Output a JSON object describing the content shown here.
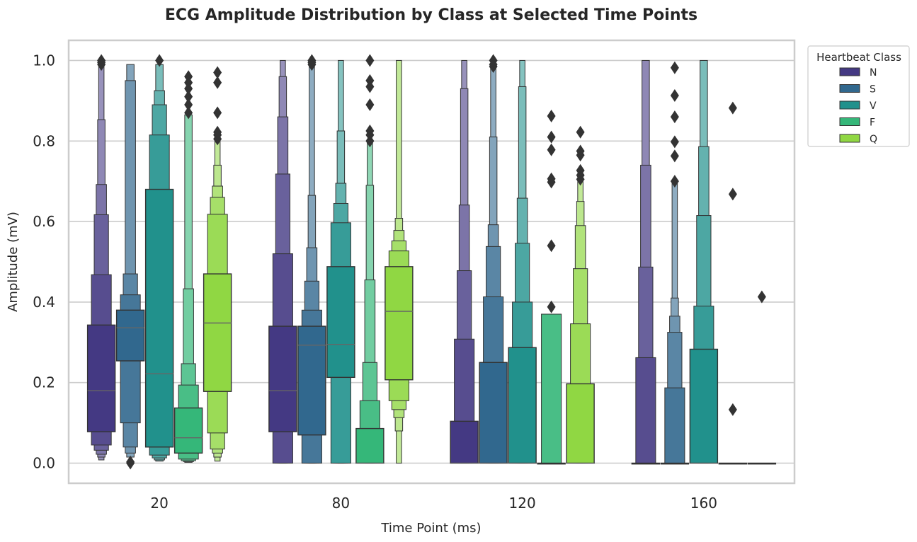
{
  "chart_data": {
    "type": "boxen",
    "title": "ECG Amplitude Distribution by Class at Selected Time Points",
    "xlabel": "Time Point (ms)",
    "ylabel": "Amplitude (mV)",
    "categories": [
      "20",
      "80",
      "120",
      "160"
    ],
    "ylim": [
      -0.05,
      1.05
    ],
    "yticks": [
      0.0,
      0.2,
      0.4,
      0.6,
      0.8,
      1.0
    ],
    "ytick_labels": [
      "0.0",
      "0.2",
      "0.4",
      "0.6",
      "0.8",
      "1.0"
    ],
    "grid": "horizontal",
    "legend": {
      "title": "Heartbeat Class",
      "position": "top-right, outside",
      "entries": [
        "N",
        "S",
        "V",
        "F",
        "Q"
      ]
    },
    "colors": {
      "N": "#443983",
      "S": "#31688e",
      "V": "#21918c",
      "F": "#35b779",
      "Q": "#90d743"
    },
    "series": [
      {
        "name": "N",
        "groups": [
          {
            "x": "20",
            "median": 0.18,
            "boxes": [
              [
                0.078,
                0.343
              ],
              [
                0.045,
                0.468
              ],
              [
                0.032,
                0.617
              ],
              [
                0.022,
                0.692
              ],
              [
                0.015,
                0.853
              ],
              [
                0.008,
                0.99
              ]
            ],
            "outliers": [
              0.99,
              0.995,
              1.0
            ]
          },
          {
            "x": "80",
            "median": 0.18,
            "boxes": [
              [
                0.078,
                0.34
              ],
              [
                0.0,
                0.52
              ],
              [
                0.0,
                0.718
              ],
              [
                0.0,
                0.86
              ],
              [
                0.0,
                0.96
              ],
              [
                0.0,
                1.0
              ]
            ],
            "outliers": []
          },
          {
            "x": "120",
            "median": 0.0,
            "boxes": [
              [
                0.0,
                0.104
              ],
              [
                0.0,
                0.308
              ],
              [
                0.0,
                0.478
              ],
              [
                0.0,
                0.641
              ],
              [
                0.0,
                0.93
              ],
              [
                0.0,
                1.0
              ]
            ],
            "outliers": []
          },
          {
            "x": "160",
            "median": 0.0,
            "boxes": [
              [
                0.0,
                0.0
              ],
              [
                0.0,
                0.262
              ],
              [
                0.0,
                0.487
              ],
              [
                0.0,
                0.74
              ],
              [
                0.0,
                1.0
              ]
            ],
            "outliers": []
          }
        ]
      },
      {
        "name": "S",
        "groups": [
          {
            "x": "20",
            "median": 0.336,
            "boxes": [
              [
                0.254,
                0.38
              ],
              [
                0.1,
                0.418
              ],
              [
                0.04,
                0.47
              ],
              [
                0.025,
                0.95
              ],
              [
                0.015,
                0.99
              ]
            ],
            "outliers": [
              0.0,
              0.003
            ]
          },
          {
            "x": "80",
            "median": 0.293,
            "boxes": [
              [
                0.07,
                0.34
              ],
              [
                0.0,
                0.38
              ],
              [
                0.0,
                0.452
              ],
              [
                0.0,
                0.535
              ],
              [
                0.0,
                0.665
              ],
              [
                0.0,
                1.0
              ]
            ],
            "outliers": [
              0.99,
              0.995,
              1.0
            ]
          },
          {
            "x": "120",
            "median": 0.0,
            "boxes": [
              [
                0.0,
                0.25
              ],
              [
                0.0,
                0.413
              ],
              [
                0.0,
                0.538
              ],
              [
                0.0,
                0.592
              ],
              [
                0.0,
                0.81
              ],
              [
                0.0,
                0.98
              ]
            ],
            "outliers": [
              0.985,
              0.99,
              1.0
            ]
          },
          {
            "x": "160",
            "median": 0.0,
            "boxes": [
              [
                0.0,
                0.0
              ],
              [
                0.0,
                0.187
              ],
              [
                0.0,
                0.325
              ],
              [
                0.0,
                0.365
              ],
              [
                0.0,
                0.41
              ],
              [
                0.0,
                0.7
              ]
            ],
            "outliers": [
              0.7,
              0.763,
              0.798,
              0.86,
              0.913,
              0.982
            ]
          }
        ]
      },
      {
        "name": "V",
        "groups": [
          {
            "x": "20",
            "median": 0.222,
            "boxes": [
              [
                0.04,
                0.68
              ],
              [
                0.02,
                0.815
              ],
              [
                0.013,
                0.89
              ],
              [
                0.008,
                0.925
              ],
              [
                0.005,
                0.99
              ]
            ],
            "outliers": [
              1.0
            ]
          },
          {
            "x": "80",
            "median": 0.295,
            "boxes": [
              [
                0.213,
                0.488
              ],
              [
                0.0,
                0.597
              ],
              [
                0.0,
                0.645
              ],
              [
                0.0,
                0.695
              ],
              [
                0.0,
                0.825
              ],
              [
                0.0,
                1.0
              ]
            ],
            "outliers": []
          },
          {
            "x": "120",
            "median": 0.0,
            "boxes": [
              [
                0.0,
                0.287
              ],
              [
                0.0,
                0.4
              ],
              [
                0.0,
                0.546
              ],
              [
                0.0,
                0.658
              ],
              [
                0.0,
                0.935
              ],
              [
                0.0,
                1.0
              ]
            ],
            "outliers": []
          },
          {
            "x": "160",
            "median": 0.0,
            "boxes": [
              [
                0.0,
                0.283
              ],
              [
                0.0,
                0.39
              ],
              [
                0.0,
                0.615
              ],
              [
                0.0,
                0.786
              ],
              [
                0.0,
                1.0
              ]
            ],
            "outliers": []
          }
        ]
      },
      {
        "name": "F",
        "groups": [
          {
            "x": "20",
            "median": 0.063,
            "boxes": [
              [
                0.025,
                0.137
              ],
              [
                0.01,
                0.194
              ],
              [
                0.006,
                0.247
              ],
              [
                0.004,
                0.433
              ],
              [
                0.002,
                0.865
              ]
            ],
            "outliers": [
              0.87,
              0.89,
              0.91,
              0.93,
              0.945,
              0.96
            ]
          },
          {
            "x": "80",
            "median": 0.0,
            "boxes": [
              [
                0.0,
                0.086
              ],
              [
                0.0,
                0.155
              ],
              [
                0.0,
                0.25
              ],
              [
                0.0,
                0.455
              ],
              [
                0.0,
                0.69
              ],
              [
                0.0,
                0.8
              ]
            ],
            "outliers": [
              0.8,
              0.815,
              0.825,
              0.89,
              0.935,
              0.95,
              1.0
            ]
          },
          {
            "x": "120",
            "median": 0.0,
            "boxes": [
              [
                0.0,
                0.0
              ],
              [
                0.0,
                0.37
              ]
            ],
            "outliers": [
              0.388,
              0.54,
              0.698,
              0.706,
              0.778,
              0.81,
              0.862
            ]
          },
          {
            "x": "160",
            "median": 0.0,
            "boxes": [
              [
                0.0,
                0.0
              ]
            ],
            "outliers": [
              0.133,
              0.668,
              0.882
            ]
          }
        ]
      },
      {
        "name": "Q",
        "groups": [
          {
            "x": "20",
            "median": 0.348,
            "boxes": [
              [
                0.178,
                0.47
              ],
              [
                0.075,
                0.618
              ],
              [
                0.035,
                0.66
              ],
              [
                0.025,
                0.688
              ],
              [
                0.015,
                0.74
              ],
              [
                0.005,
                0.8
              ]
            ],
            "outliers": [
              0.805,
              0.815,
              0.822,
              0.87,
              0.945,
              0.97
            ]
          },
          {
            "x": "80",
            "median": 0.377,
            "boxes": [
              [
                0.207,
                0.488
              ],
              [
                0.155,
                0.527
              ],
              [
                0.133,
                0.552
              ],
              [
                0.113,
                0.578
              ],
              [
                0.08,
                0.608
              ],
              [
                0.0,
                1.0
              ]
            ],
            "outliers": []
          },
          {
            "x": "120",
            "median": 0.0,
            "boxes": [
              [
                0.0,
                0.197
              ],
              [
                0.0,
                0.346
              ],
              [
                0.0,
                0.483
              ],
              [
                0.0,
                0.59
              ],
              [
                0.0,
                0.65
              ],
              [
                0.0,
                0.7
              ]
            ],
            "outliers": [
              0.705,
              0.715,
              0.727,
              0.765,
              0.775,
              0.822
            ]
          },
          {
            "x": "160",
            "median": 0.0,
            "boxes": [
              [
                0.0,
                0.0
              ]
            ],
            "outliers": [
              0.413
            ]
          }
        ]
      }
    ]
  }
}
